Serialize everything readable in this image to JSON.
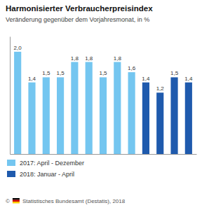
{
  "chart_data": {
    "type": "bar",
    "title": "Harmonisierter Verbraucherpreisindex",
    "subtitle": "Veränderung gegenüber dem Vorjahresmonat, in %",
    "categories": [
      null,
      null,
      null,
      null,
      null,
      null,
      null,
      null,
      null,
      null,
      null,
      null,
      null
    ],
    "series": [
      {
        "name": "2017: April - Dezember",
        "color": "#74c6f0",
        "values": [
          2.0,
          1.4,
          1.5,
          1.5,
          1.8,
          1.8,
          1.5,
          1.8,
          1.6,
          null,
          null,
          null,
          null
        ],
        "value_labels": [
          "2,0",
          "1,4",
          "1,5",
          "1,5",
          "1,8",
          "1,8",
          "1,5",
          "1,8",
          "1,6",
          null,
          null,
          null,
          null
        ]
      },
      {
        "name": "2018: Januar - April",
        "color": "#1f5aad",
        "values": [
          null,
          null,
          null,
          null,
          null,
          null,
          null,
          null,
          null,
          1.4,
          1.2,
          1.5,
          1.4
        ],
        "value_labels": [
          null,
          null,
          null,
          null,
          null,
          null,
          null,
          null,
          null,
          "1,4",
          "1,2",
          "1,5",
          "1,4"
        ]
      }
    ],
    "ylim": [
      0,
      2.3
    ],
    "data_labels": true,
    "tick_labels": false,
    "grid": false,
    "legend": "bottom",
    "annotations": [
      "©",
      "Statistisches Bundesamt (Destatis), 2018"
    ]
  }
}
